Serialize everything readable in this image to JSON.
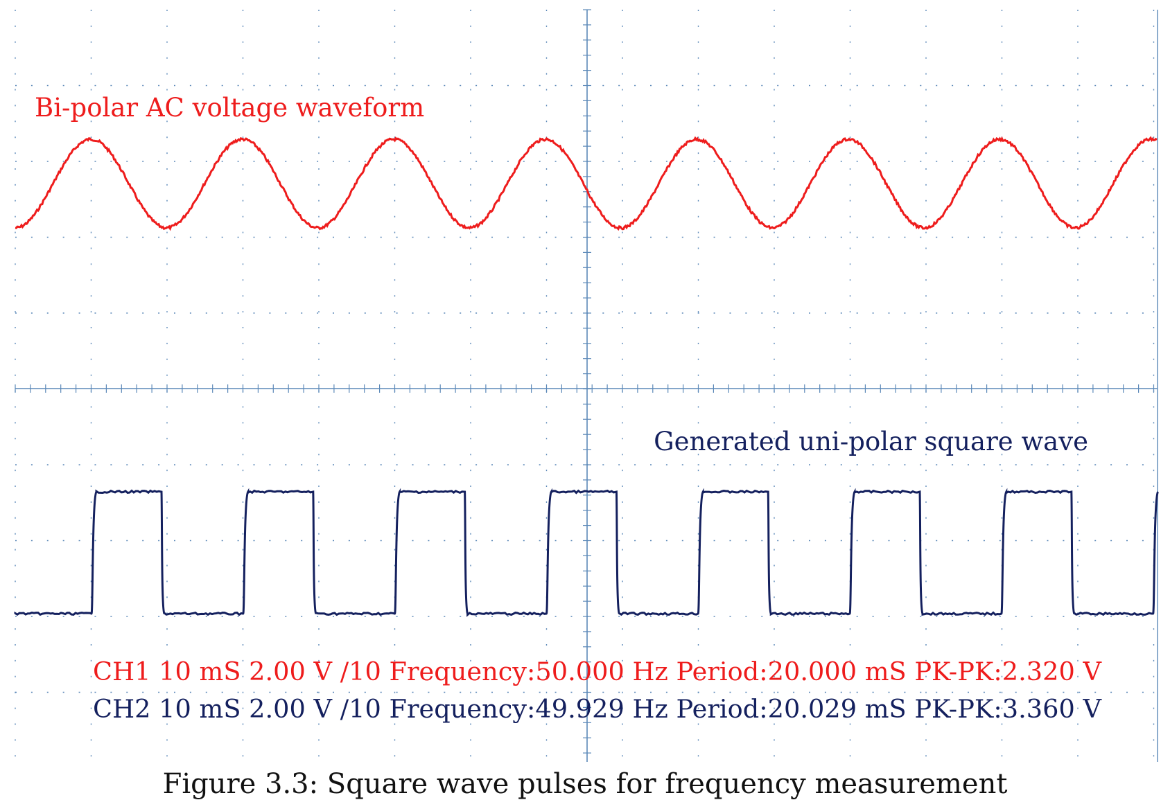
{
  "chart_data": {
    "type": "line",
    "annotations": {
      "ch1_label": "Bi-polar AC voltage waveform",
      "ch2_label": "Generated uni-polar square wave",
      "ch1_readout": "CH1 10 mS 2.00 V /10 Frequency:50.000 Hz Period:20.000 mS PK-PK:2.320 V",
      "ch2_readout": "CH2 10 mS 2.00 V /10 Frequency:49.929 Hz Period:20.029 mS PK-PK:3.360 V"
    },
    "series": [
      {
        "channel": "CH1",
        "kind": "sine",
        "color": "#ee1c1c",
        "frequency_hz": 50.0,
        "period_ms": 20.0,
        "pk_pk_v": 2.32,
        "volts_per_div": 2.0,
        "time_per_div_ms": 10
      },
      {
        "channel": "CH2",
        "kind": "square",
        "color": "#14205e",
        "frequency_hz": 49.929,
        "period_ms": 20.029,
        "pk_pk_v": 3.36,
        "volts_per_div": 2.0,
        "time_per_div_ms": 10
      }
    ],
    "grid": true,
    "grid_color": "#5b88b8"
  },
  "caption": "Figure 3.3: Square wave pulses for frequency measurement"
}
